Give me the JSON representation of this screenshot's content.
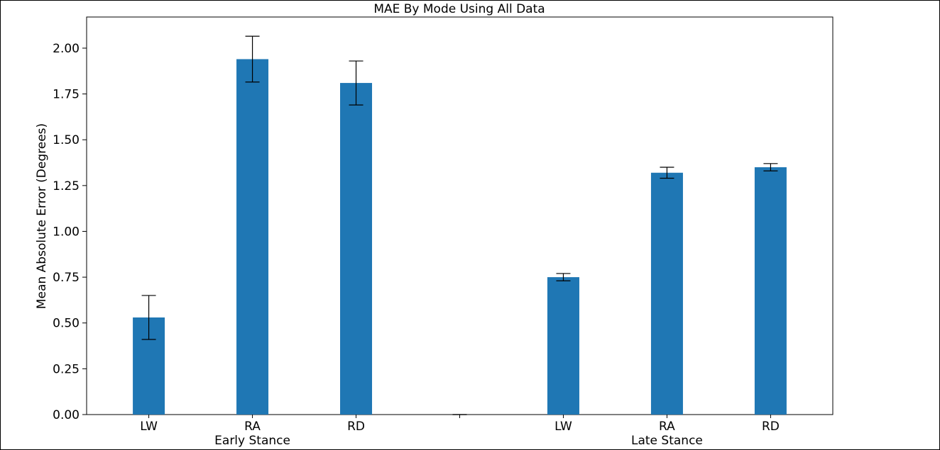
{
  "chart_data": {
    "type": "bar",
    "title": "MAE By Mode Using All Data",
    "xlabel": "",
    "ylabel": "Mean Absolute Error (Degrees)",
    "ylim": [
      0,
      2.17
    ],
    "yticks": [
      "0.00",
      "0.25",
      "0.50",
      "0.75",
      "1.00",
      "1.25",
      "1.50",
      "1.75",
      "2.00"
    ],
    "categories": [
      "LW",
      "RA",
      "RD",
      "",
      "LW",
      "RA",
      "RD"
    ],
    "values": [
      0.53,
      1.94,
      1.81,
      0,
      0.75,
      1.32,
      1.35
    ],
    "errors": [
      0.12,
      0.125,
      0.12,
      0,
      0.02,
      0.03,
      0.02
    ],
    "groups": [
      {
        "label": "Early Stance"
      },
      {
        "label": "Late Stance"
      }
    ],
    "bar_color": "#1f77b4",
    "error_color": "#000000",
    "grid": false,
    "legend": "none"
  }
}
